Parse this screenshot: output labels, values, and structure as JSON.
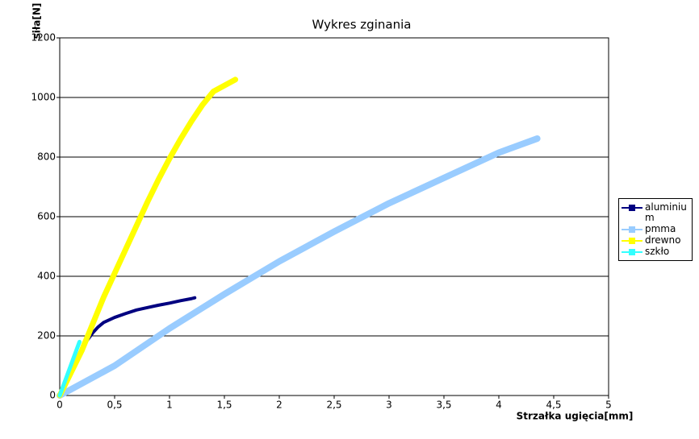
{
  "chart_data": {
    "type": "line",
    "title": "Wykres zginania",
    "x_label": "Strzałka ugięcia[mm]",
    "y_label": "siła[N]",
    "xlim": [
      0,
      5
    ],
    "xticks": [
      0,
      {
        "value": 0.5,
        "label": "0,5"
      },
      1,
      {
        "value": 1.5,
        "label": "1,5"
      },
      2,
      {
        "value": 2.5,
        "label": "2,5"
      },
      3,
      {
        "value": 3.5,
        "label": "3,5"
      },
      4,
      {
        "value": 4.5,
        "label": "4,5"
      },
      5
    ],
    "ylim": [
      0,
      1200
    ],
    "yticks": [
      0,
      200,
      400,
      600,
      800,
      1000,
      1200
    ],
    "grid": true,
    "legend": "right",
    "series": [
      {
        "name": "aluminium",
        "color": "#000080",
        "x": [
          0,
          0.05,
          0.1,
          0.15,
          0.2,
          0.25,
          0.3,
          0.35,
          0.4,
          0.5,
          0.6,
          0.7,
          0.8,
          0.9,
          1.0,
          1.1,
          1.2,
          1.23
        ],
        "values": [
          0,
          30,
          70,
          110,
          150,
          185,
          210,
          230,
          245,
          262,
          275,
          287,
          295,
          303,
          310,
          318,
          325,
          328
        ]
      },
      {
        "name": "pmma",
        "color": "#99ccff",
        "x": [
          0,
          0.5,
          1,
          1.5,
          2,
          2.5,
          3,
          3.5,
          4,
          4.35
        ],
        "values": [
          0,
          100,
          225,
          340,
          450,
          550,
          645,
          730,
          815,
          862
        ]
      },
      {
        "name": "drewno",
        "color": "#ffff00",
        "x": [
          0,
          0.2,
          0.3,
          0.4,
          0.5,
          0.6,
          0.7,
          0.8,
          0.9,
          1.0,
          1.1,
          1.2,
          1.3,
          1.4,
          1.5,
          1.6
        ],
        "values": [
          0,
          150,
          240,
          330,
          410,
          490,
          570,
          650,
          725,
          795,
          860,
          920,
          975,
          1020,
          1040,
          1060
        ]
      },
      {
        "name": "szkło",
        "color": "#33ffff",
        "x": [
          0,
          0.05,
          0.1,
          0.15,
          0.18
        ],
        "values": [
          0,
          50,
          100,
          150,
          180
        ]
      }
    ]
  }
}
